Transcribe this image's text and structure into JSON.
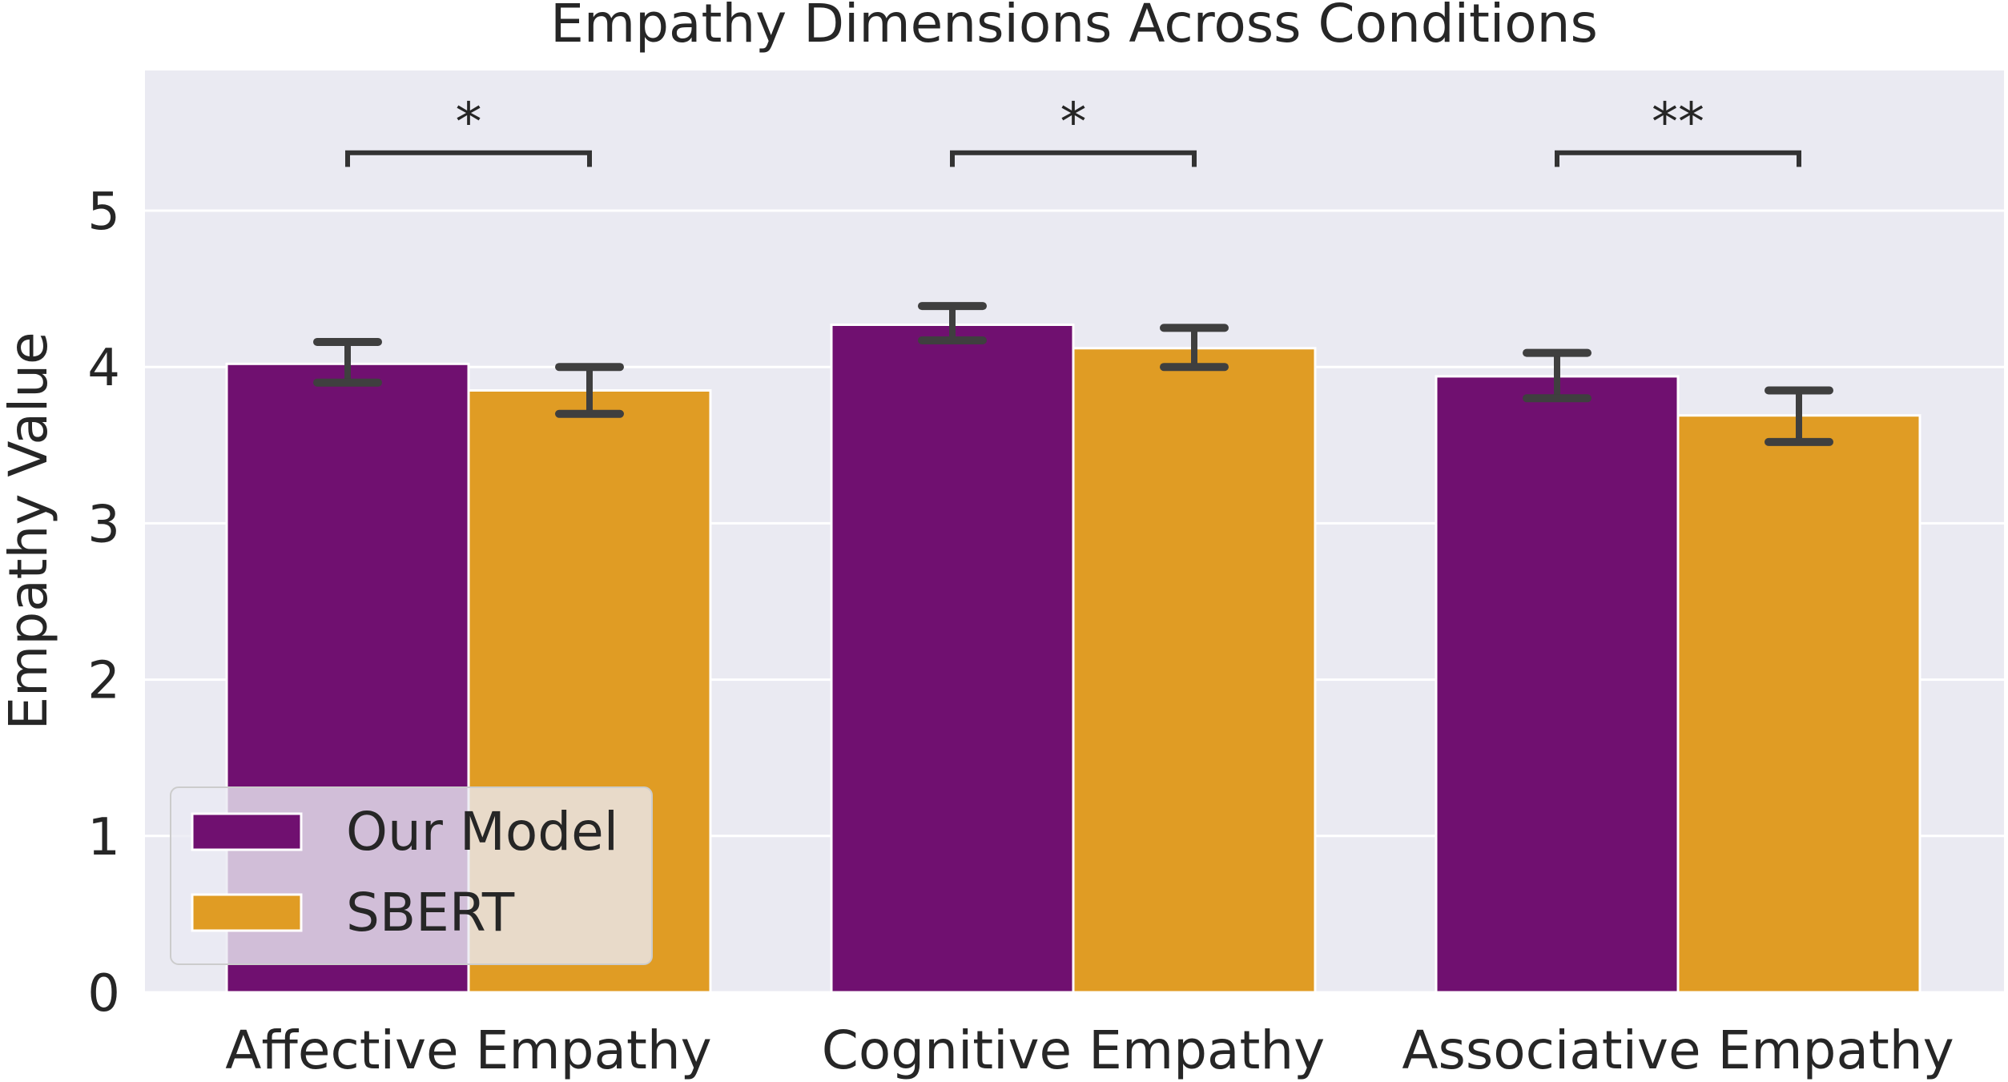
{
  "chart_data": {
    "type": "bar",
    "title": "Empathy Dimensions Across Conditions",
    "xlabel": "",
    "ylabel": "Empathy Value",
    "ylim": [
      0,
      5.9
    ],
    "yticks": [
      "0",
      "1",
      "2",
      "3",
      "4",
      "5"
    ],
    "grid": true,
    "legend_position": "lower-left",
    "categories": [
      "Affective Empathy",
      "Cognitive Empathy",
      "Associative Empathy"
    ],
    "series": [
      {
        "name": "Our Model",
        "color": "#701070",
        "values": [
          4.02,
          4.27,
          3.94
        ],
        "error_low": [
          3.9,
          4.17,
          3.8
        ],
        "error_high": [
          4.16,
          4.39,
          4.09
        ]
      },
      {
        "name": "SBERT",
        "color": "#E09C24",
        "values": [
          3.85,
          4.12,
          3.69
        ],
        "error_low": [
          3.7,
          4.0,
          3.52
        ],
        "error_high": [
          4.0,
          4.25,
          3.85
        ]
      }
    ],
    "significance": [
      "*",
      "*",
      "**"
    ],
    "colors": {
      "background": "#EAEAF2",
      "grid": "#FFFFFF",
      "errorbar": "#3F3F3F"
    }
  }
}
